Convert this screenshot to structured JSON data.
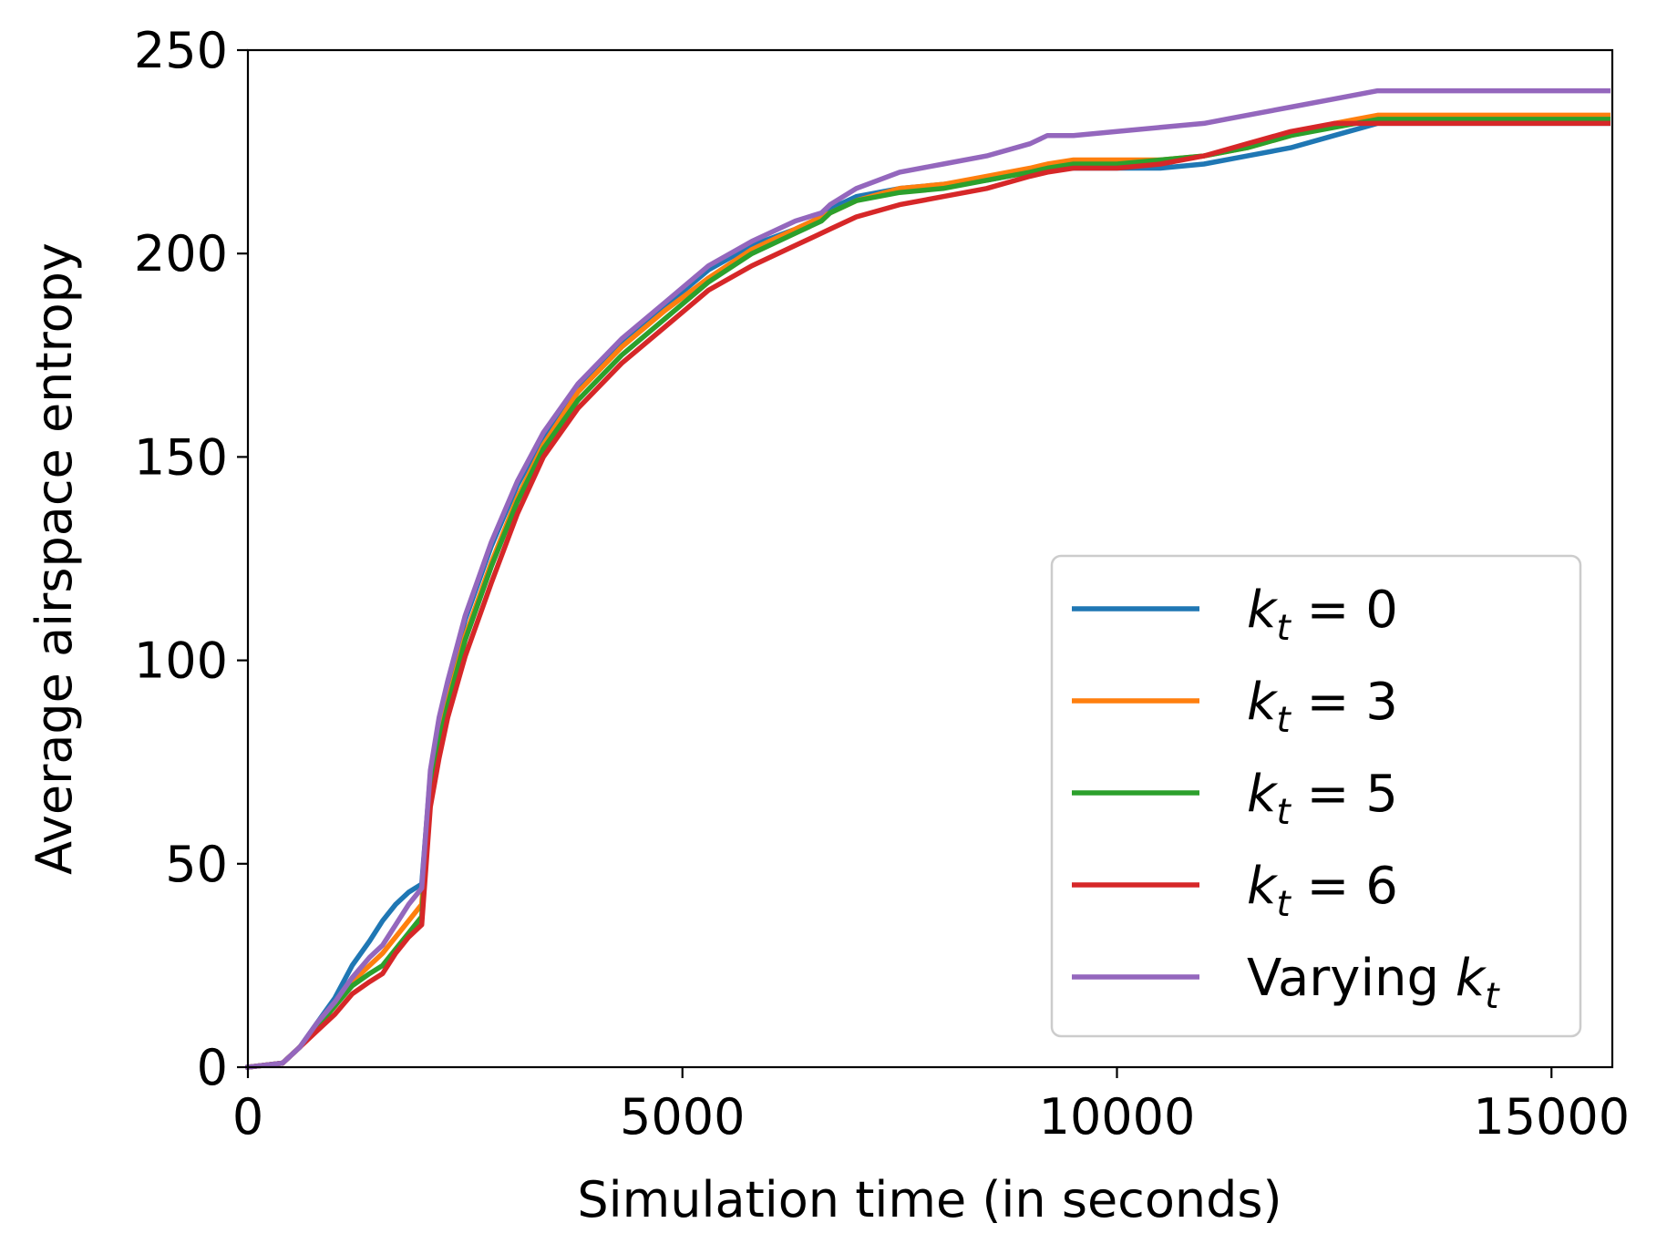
{
  "chart_data": {
    "type": "line",
    "title": "",
    "xlabel": "Simulation time (in seconds)",
    "ylabel": "Average airspace entropy",
    "xlim": [
      0,
      15700
    ],
    "ylim": [
      0,
      250
    ],
    "xticks": [
      0,
      5000,
      10000,
      15000
    ],
    "yticks": [
      0,
      50,
      100,
      150,
      200,
      250
    ],
    "xtick_labels": [
      "0",
      "5000",
      "10000",
      "15000"
    ],
    "ytick_labels": [
      "0",
      "50",
      "100",
      "150",
      "200",
      "250"
    ],
    "grid": false,
    "legend_position": "lower-right",
    "series": [
      {
        "name": "kt = 0",
        "legend": {
          "base": "k",
          "sub": "t",
          "suffix": " = 0"
        },
        "color": "#1f77b4",
        "x": [
          0,
          400,
          600,
          800,
          1000,
          1200,
          1400,
          1550,
          1700,
          1850,
          2000,
          2100,
          2200,
          2300,
          2500,
          2800,
          3100,
          3400,
          3800,
          4300,
          4800,
          5300,
          5800,
          6300,
          6600,
          6700,
          7000,
          7500,
          8000,
          8500,
          9000,
          9200,
          9500,
          10000,
          10500,
          11000,
          11500,
          12000,
          12500,
          13000,
          15650
        ],
        "values": [
          0,
          1,
          5,
          11,
          17,
          25,
          31,
          36,
          40,
          43,
          45,
          72,
          85,
          94,
          110,
          128,
          143,
          155,
          167,
          178,
          187,
          196,
          202,
          206,
          209,
          211,
          214,
          216,
          217,
          218,
          220,
          221,
          221,
          221,
          221,
          222,
          224,
          226,
          229,
          232,
          232
        ]
      },
      {
        "name": "kt = 3",
        "legend": {
          "base": "k",
          "sub": "t",
          "suffix": " = 3"
        },
        "color": "#ff7f0e",
        "x": [
          0,
          400,
          600,
          800,
          1000,
          1200,
          1400,
          1550,
          1700,
          1850,
          2000,
          2100,
          2200,
          2300,
          2500,
          2800,
          3100,
          3400,
          3800,
          4300,
          4800,
          5300,
          5800,
          6300,
          6600,
          6700,
          7000,
          7500,
          8000,
          8500,
          9000,
          9200,
          9500,
          10000,
          10500,
          11000,
          11500,
          12000,
          12500,
          13000,
          15650
        ],
        "values": [
          0,
          1,
          5,
          10,
          15,
          21,
          25,
          28,
          32,
          36,
          40,
          68,
          81,
          90,
          106,
          124,
          140,
          153,
          166,
          177,
          186,
          194,
          201,
          206,
          209,
          210,
          213,
          216,
          217,
          219,
          221,
          222,
          223,
          223,
          223,
          224,
          226,
          229,
          232,
          234,
          234
        ]
      },
      {
        "name": "kt = 5",
        "legend": {
          "base": "k",
          "sub": "t",
          "suffix": " = 5"
        },
        "color": "#2ca02c",
        "x": [
          0,
          400,
          600,
          800,
          1000,
          1200,
          1400,
          1550,
          1700,
          1850,
          2000,
          2100,
          2200,
          2300,
          2500,
          2800,
          3100,
          3400,
          3800,
          4300,
          4800,
          5300,
          5800,
          6300,
          6600,
          6700,
          7000,
          7500,
          8000,
          8500,
          9000,
          9200,
          9500,
          10000,
          10500,
          11000,
          11500,
          12000,
          12500,
          13000,
          15650
        ],
        "values": [
          0,
          1,
          5,
          10,
          15,
          20,
          23,
          25,
          29,
          33,
          37,
          67,
          80,
          89,
          105,
          123,
          139,
          152,
          164,
          175,
          184,
          193,
          200,
          205,
          208,
          210,
          213,
          215,
          216,
          218,
          220,
          221,
          222,
          222,
          223,
          224,
          226,
          229,
          231,
          233,
          233
        ]
      },
      {
        "name": "kt = 6",
        "legend": {
          "base": "k",
          "sub": "t",
          "suffix": " = 6"
        },
        "color": "#d62728",
        "x": [
          0,
          400,
          600,
          800,
          1000,
          1200,
          1400,
          1550,
          1700,
          1850,
          2000,
          2100,
          2200,
          2300,
          2500,
          2800,
          3100,
          3400,
          3800,
          4300,
          4800,
          5300,
          5800,
          6300,
          6600,
          6700,
          7000,
          7500,
          8000,
          8500,
          9000,
          9200,
          9500,
          10000,
          10500,
          11000,
          11500,
          12000,
          12500,
          13000,
          15650
        ],
        "values": [
          0,
          1,
          5,
          9,
          13,
          18,
          21,
          23,
          28,
          32,
          35,
          64,
          76,
          86,
          101,
          119,
          136,
          150,
          162,
          173,
          182,
          191,
          197,
          202,
          205,
          206,
          209,
          212,
          214,
          216,
          219,
          220,
          221,
          221,
          222,
          224,
          227,
          230,
          232,
          232,
          232
        ]
      },
      {
        "name": "Varying kt",
        "legend": {
          "base": "Varying k",
          "sub": "t",
          "suffix": ""
        },
        "color": "#9467bd",
        "x": [
          0,
          400,
          600,
          800,
          1000,
          1200,
          1400,
          1550,
          1700,
          1850,
          2000,
          2100,
          2200,
          2300,
          2500,
          2800,
          3100,
          3400,
          3800,
          4300,
          4800,
          5300,
          5800,
          6300,
          6600,
          6700,
          7000,
          7500,
          8000,
          8500,
          9000,
          9200,
          9500,
          10000,
          10500,
          11000,
          11500,
          12000,
          12500,
          13000,
          15650
        ],
        "values": [
          0,
          1,
          5,
          11,
          16,
          22,
          27,
          30,
          35,
          40,
          44,
          73,
          86,
          95,
          111,
          129,
          144,
          156,
          168,
          179,
          188,
          197,
          203,
          208,
          210,
          212,
          216,
          220,
          222,
          224,
          227,
          229,
          229,
          230,
          231,
          232,
          234,
          236,
          238,
          240,
          240
        ]
      }
    ]
  }
}
